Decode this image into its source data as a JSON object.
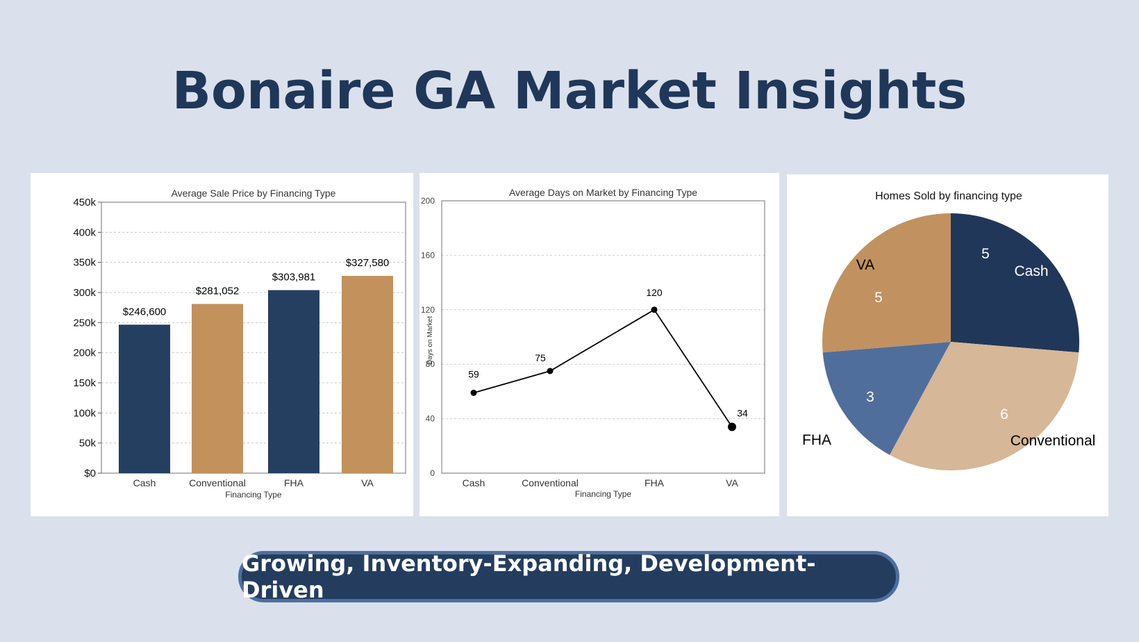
{
  "page": {
    "title": "Bonaire GA Market Insights",
    "tagline": "Growing, Inventory-Expanding, Development-Driven"
  },
  "chart_data": [
    {
      "type": "bar",
      "title": "Average Sale Price by Financing Type",
      "xlabel": "Financing Type",
      "ylabel": "",
      "categories": [
        "Cash",
        "Conventional",
        "FHA",
        "VA"
      ],
      "values": [
        246600,
        281052,
        303981,
        327580
      ],
      "value_labels": [
        "$246,600",
        "$281,052",
        "$303,981",
        "$327,580"
      ],
      "bar_colors": [
        "#243f60",
        "#c2915c",
        "#243f60",
        "#c2915c"
      ],
      "ylim": [
        0,
        450000
      ],
      "yticks": [
        0,
        50000,
        100000,
        150000,
        200000,
        250000,
        300000,
        350000,
        400000,
        450000
      ],
      "ytick_labels": [
        "$0",
        "50k",
        "100k",
        "150k",
        "200k",
        "250k",
        "300k",
        "350k",
        "400k",
        "450k"
      ],
      "grid": true
    },
    {
      "type": "line",
      "title": "Average Days on Market by Financing Type",
      "xlabel": "Financing Type",
      "ylabel": "Days on Market",
      "categories": [
        "Cash",
        "Conventional",
        "FHA",
        "VA"
      ],
      "values": [
        59,
        75,
        120,
        34
      ],
      "value_labels": [
        "59",
        "75",
        "120",
        "34"
      ],
      "ylim": [
        0,
        200
      ],
      "yticks": [
        0,
        40,
        80,
        120,
        160,
        200
      ],
      "ytick_labels": [
        "0",
        "40",
        "80",
        "120",
        "160",
        "200"
      ],
      "grid": true,
      "line_color": "#000000"
    },
    {
      "type": "pie",
      "title": "Homes Sold by financing type",
      "categories": [
        "Cash",
        "Conventional",
        "FHA",
        "VA"
      ],
      "values": [
        5,
        6,
        3,
        5
      ],
      "value_labels": [
        "5",
        "6",
        "3",
        "5"
      ],
      "colors": [
        "#203759",
        "#d6b797",
        "#506e9c",
        "#c19260"
      ]
    }
  ]
}
